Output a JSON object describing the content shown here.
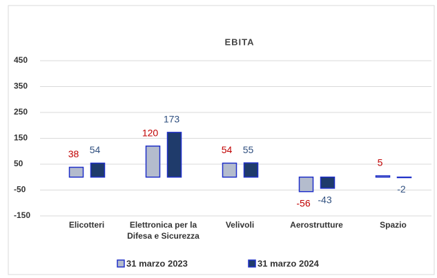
{
  "chart_data": {
    "type": "bar",
    "title": "EBITA",
    "categories": [
      "Elicotteri",
      "Elettronica per la Difesa e Sicurezza",
      "Velivoli",
      "Aerostrutture",
      "Spazio"
    ],
    "series": [
      {
        "name": "31 marzo 2023",
        "color": "#b4bccd",
        "edge": "#1f2fc8",
        "label_color": "#c00000",
        "values": [
          38,
          120,
          54,
          -56,
          5
        ]
      },
      {
        "name": "31 marzo 2024",
        "color": "#1f3b6b",
        "edge": "#1f2fc8",
        "label_color": "#2f4f7f",
        "values": [
          54,
          173,
          55,
          -43,
          -2
        ]
      }
    ],
    "ylim": [
      -150,
      450
    ],
    "yticks": [
      -150,
      -50,
      50,
      150,
      250,
      350,
      450
    ],
    "grid": true,
    "legend": "bottom"
  }
}
